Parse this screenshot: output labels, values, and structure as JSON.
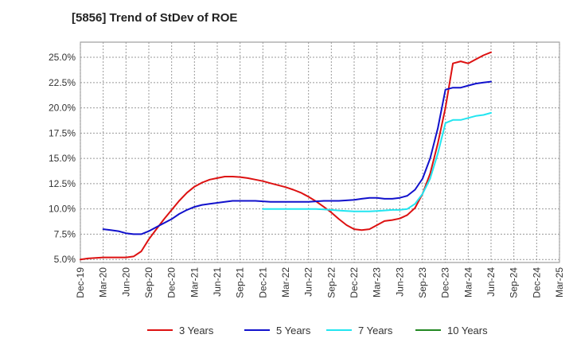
{
  "chart_data": {
    "type": "line",
    "title": "[5856]  Trend of StDev of ROE",
    "xlabel": "",
    "ylabel": "",
    "x_tick_labels": [
      "Dec-19",
      "Mar-20",
      "Jun-20",
      "Sep-20",
      "Dec-20",
      "Mar-21",
      "Jun-21",
      "Sep-21",
      "Dec-21",
      "Mar-22",
      "Jun-22",
      "Sep-22",
      "Dec-22",
      "Mar-23",
      "Jun-23",
      "Sep-23",
      "Dec-23",
      "Mar-24",
      "Jun-24",
      "Sep-24",
      "Dec-24",
      "Mar-25"
    ],
    "y_tick_labels": [
      "5.0%",
      "7.5%",
      "10.0%",
      "12.5%",
      "15.0%",
      "17.5%",
      "20.0%",
      "22.5%",
      "25.0%"
    ],
    "y_ticks": [
      5.0,
      7.5,
      10.0,
      12.5,
      15.0,
      17.5,
      20.0,
      22.5,
      25.0
    ],
    "ylim": [
      4.7,
      26.5
    ],
    "xlim": [
      0,
      21
    ],
    "grid": true,
    "legend_position": "bottom",
    "series": [
      {
        "name": "3 Years",
        "color": "#dd1111",
        "points": [
          [
            0,
            5.0
          ],
          [
            0.33,
            5.1
          ],
          [
            0.67,
            5.15
          ],
          [
            1,
            5.2
          ],
          [
            1.33,
            5.2
          ],
          [
            1.67,
            5.2
          ],
          [
            2,
            5.2
          ],
          [
            2.33,
            5.3
          ],
          [
            2.67,
            5.8
          ],
          [
            3,
            7.0
          ],
          [
            3.33,
            8.0
          ],
          [
            3.67,
            9.0
          ],
          [
            4,
            9.9
          ],
          [
            4.33,
            10.8
          ],
          [
            4.67,
            11.6
          ],
          [
            5,
            12.2
          ],
          [
            5.33,
            12.6
          ],
          [
            5.67,
            12.9
          ],
          [
            6,
            13.05
          ],
          [
            6.33,
            13.2
          ],
          [
            6.67,
            13.2
          ],
          [
            7,
            13.15
          ],
          [
            7.33,
            13.05
          ],
          [
            7.67,
            12.9
          ],
          [
            8,
            12.75
          ],
          [
            8.33,
            12.55
          ],
          [
            8.67,
            12.35
          ],
          [
            9,
            12.15
          ],
          [
            9.33,
            11.9
          ],
          [
            9.67,
            11.6
          ],
          [
            10,
            11.2
          ],
          [
            10.33,
            10.75
          ],
          [
            10.67,
            10.2
          ],
          [
            11,
            9.65
          ],
          [
            11.33,
            9.0
          ],
          [
            11.67,
            8.4
          ],
          [
            12,
            8.0
          ],
          [
            12.33,
            7.9
          ],
          [
            12.67,
            8.0
          ],
          [
            13,
            8.4
          ],
          [
            13.33,
            8.8
          ],
          [
            13.67,
            8.9
          ],
          [
            14,
            9.05
          ],
          [
            14.33,
            9.4
          ],
          [
            14.67,
            10.1
          ],
          [
            15,
            11.5
          ],
          [
            15.33,
            13.5
          ],
          [
            15.67,
            16.5
          ],
          [
            16,
            20.0
          ],
          [
            16.33,
            24.4
          ],
          [
            16.67,
            24.6
          ],
          [
            17,
            24.4
          ],
          [
            17.33,
            24.8
          ],
          [
            17.67,
            25.2
          ],
          [
            18,
            25.5
          ]
        ]
      },
      {
        "name": "5 Years",
        "color": "#1111cc",
        "points": [
          [
            1,
            8.0
          ],
          [
            1.33,
            7.9
          ],
          [
            1.67,
            7.8
          ],
          [
            2,
            7.6
          ],
          [
            2.33,
            7.5
          ],
          [
            2.67,
            7.5
          ],
          [
            3,
            7.8
          ],
          [
            3.33,
            8.2
          ],
          [
            3.67,
            8.6
          ],
          [
            4,
            9.0
          ],
          [
            4.33,
            9.5
          ],
          [
            4.67,
            9.9
          ],
          [
            5,
            10.2
          ],
          [
            5.33,
            10.4
          ],
          [
            5.67,
            10.5
          ],
          [
            6,
            10.6
          ],
          [
            6.33,
            10.7
          ],
          [
            6.67,
            10.8
          ],
          [
            7,
            10.8
          ],
          [
            7.33,
            10.8
          ],
          [
            7.67,
            10.8
          ],
          [
            8,
            10.75
          ],
          [
            8.33,
            10.7
          ],
          [
            8.67,
            10.7
          ],
          [
            9,
            10.7
          ],
          [
            9.33,
            10.7
          ],
          [
            9.67,
            10.7
          ],
          [
            10,
            10.7
          ],
          [
            10.33,
            10.75
          ],
          [
            10.67,
            10.8
          ],
          [
            11,
            10.8
          ],
          [
            11.33,
            10.8
          ],
          [
            11.67,
            10.85
          ],
          [
            12,
            10.9
          ],
          [
            12.33,
            11.0
          ],
          [
            12.67,
            11.1
          ],
          [
            13,
            11.1
          ],
          [
            13.33,
            11.0
          ],
          [
            13.67,
            11.0
          ],
          [
            14,
            11.1
          ],
          [
            14.33,
            11.3
          ],
          [
            14.67,
            11.9
          ],
          [
            15,
            13.0
          ],
          [
            15.33,
            15.0
          ],
          [
            15.67,
            18.0
          ],
          [
            16,
            21.8
          ],
          [
            16.33,
            22.0
          ],
          [
            16.67,
            22.0
          ],
          [
            17,
            22.2
          ],
          [
            17.33,
            22.4
          ],
          [
            17.67,
            22.5
          ],
          [
            18,
            22.6
          ]
        ]
      },
      {
        "name": "7 Years",
        "color": "#22e5f0",
        "points": [
          [
            8,
            10.0
          ],
          [
            8.33,
            10.0
          ],
          [
            8.67,
            10.0
          ],
          [
            9,
            10.0
          ],
          [
            9.33,
            10.0
          ],
          [
            9.67,
            10.0
          ],
          [
            10,
            10.0
          ],
          [
            10.33,
            10.0
          ],
          [
            10.67,
            9.95
          ],
          [
            11,
            9.9
          ],
          [
            11.33,
            9.85
          ],
          [
            11.67,
            9.8
          ],
          [
            12,
            9.75
          ],
          [
            12.33,
            9.75
          ],
          [
            12.67,
            9.75
          ],
          [
            13,
            9.8
          ],
          [
            13.33,
            9.85
          ],
          [
            13.67,
            9.9
          ],
          [
            14,
            9.9
          ],
          [
            14.33,
            10.0
          ],
          [
            14.67,
            10.5
          ],
          [
            15,
            11.5
          ],
          [
            15.33,
            13.0
          ],
          [
            15.67,
            15.5
          ],
          [
            16,
            18.5
          ],
          [
            16.33,
            18.8
          ],
          [
            16.67,
            18.8
          ],
          [
            17,
            19.0
          ],
          [
            17.33,
            19.2
          ],
          [
            17.67,
            19.3
          ],
          [
            18,
            19.5
          ]
        ]
      },
      {
        "name": "10 Years",
        "color": "#228822",
        "points": []
      }
    ]
  }
}
